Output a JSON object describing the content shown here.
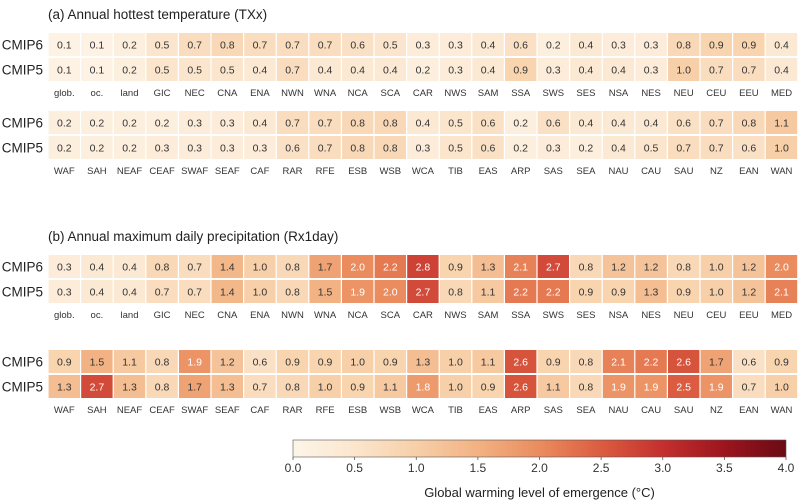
{
  "chart_data": [
    {
      "type": "heatmap",
      "title": "(a) Annual hottest temperature (TXx)",
      "blocks": [
        {
          "regions": [
            "glob.",
            "oc.",
            "land",
            "GIC",
            "NEC",
            "CNA",
            "ENA",
            "NWN",
            "WNA",
            "NCA",
            "SCA",
            "CAR",
            "NWS",
            "SAM",
            "SSA",
            "SWS",
            "SES",
            "NSA",
            "NES",
            "NEU",
            "CEU",
            "EEU",
            "MED"
          ],
          "series": [
            {
              "name": "CMIP6",
              "values": [
                0.1,
                0.1,
                0.2,
                0.5,
                0.7,
                0.8,
                0.7,
                0.7,
                0.7,
                0.6,
                0.5,
                0.3,
                0.3,
                0.4,
                0.6,
                0.2,
                0.4,
                0.3,
                0.3,
                0.8,
                0.9,
                0.9,
                0.4
              ]
            },
            {
              "name": "CMIP5",
              "values": [
                0.1,
                0.1,
                0.2,
                0.5,
                0.5,
                0.5,
                0.4,
                0.7,
                0.4,
                0.4,
                0.4,
                0.2,
                0.3,
                0.4,
                0.9,
                0.3,
                0.4,
                0.4,
                0.3,
                1.0,
                0.7,
                0.7,
                0.4
              ]
            }
          ]
        },
        {
          "regions": [
            "WAF",
            "SAH",
            "NEAF",
            "CEAF",
            "SWAF",
            "SEAF",
            "CAF",
            "RAR",
            "RFE",
            "ESB",
            "WSB",
            "WCA",
            "TIB",
            "EAS",
            "ARP",
            "SAS",
            "SEA",
            "NAU",
            "CAU",
            "SAU",
            "NZ",
            "EAN",
            "WAN"
          ],
          "series": [
            {
              "name": "CMIP6",
              "values": [
                0.2,
                0.2,
                0.2,
                0.2,
                0.3,
                0.3,
                0.4,
                0.7,
                0.7,
                0.8,
                0.8,
                0.4,
                0.5,
                0.6,
                0.2,
                0.6,
                0.4,
                0.4,
                0.4,
                0.6,
                0.7,
                0.8,
                1.1
              ]
            },
            {
              "name": "CMIP5",
              "values": [
                0.2,
                0.2,
                0.2,
                0.3,
                0.3,
                0.3,
                0.3,
                0.6,
                0.7,
                0.8,
                0.8,
                0.3,
                0.5,
                0.6,
                0.2,
                0.3,
                0.2,
                0.4,
                0.5,
                0.7,
                0.7,
                0.6,
                1.0
              ]
            }
          ]
        }
      ]
    },
    {
      "type": "heatmap",
      "title": "(b) Annual maximum daily precipitation (Rx1day)",
      "blocks": [
        {
          "regions": [
            "glob.",
            "oc.",
            "land",
            "GIC",
            "NEC",
            "CNA",
            "ENA",
            "NWN",
            "WNA",
            "NCA",
            "SCA",
            "CAR",
            "NWS",
            "SAM",
            "SSA",
            "SWS",
            "SES",
            "NSA",
            "NES",
            "NEU",
            "CEU",
            "EEU",
            "MED"
          ],
          "series": [
            {
              "name": "CMIP6",
              "values": [
                0.3,
                0.4,
                0.4,
                0.8,
                0.7,
                1.4,
                1.0,
                0.8,
                1.7,
                2.0,
                2.2,
                2.8,
                0.9,
                1.3,
                2.1,
                2.7,
                0.8,
                1.2,
                1.2,
                0.8,
                1.0,
                1.2,
                2.0
              ]
            },
            {
              "name": "CMIP5",
              "values": [
                0.3,
                0.4,
                0.4,
                0.7,
                0.7,
                1.4,
                1.0,
                0.8,
                1.5,
                1.9,
                2.0,
                2.7,
                0.8,
                1.1,
                2.2,
                2.2,
                0.9,
                0.9,
                1.3,
                0.9,
                1.0,
                1.2,
                2.1
              ]
            }
          ]
        },
        {
          "regions": [
            "WAF",
            "SAH",
            "NEAF",
            "CEAF",
            "SWAF",
            "SEAF",
            "CAF",
            "RAR",
            "RFE",
            "ESB",
            "WSB",
            "WCA",
            "TIB",
            "EAS",
            "ARP",
            "SAS",
            "SEA",
            "NAU",
            "CAU",
            "SAU",
            "NZ",
            "EAN",
            "WAN"
          ],
          "series": [
            {
              "name": "CMIP6",
              "values": [
                0.9,
                1.5,
                1.1,
                0.8,
                1.9,
                1.2,
                0.6,
                0.9,
                0.9,
                1.0,
                0.9,
                1.3,
                1.0,
                1.1,
                2.6,
                0.9,
                0.8,
                2.1,
                2.2,
                2.6,
                1.7,
                0.6,
                0.9
              ]
            },
            {
              "name": "CMIP5",
              "values": [
                1.3,
                2.7,
                1.3,
                0.8,
                1.7,
                1.3,
                0.7,
                0.8,
                1.0,
                0.9,
                1.1,
                1.8,
                1.0,
                0.9,
                2.6,
                1.1,
                0.8,
                1.9,
                1.9,
                2.5,
                1.9,
                0.7,
                1.0
              ]
            }
          ]
        }
      ]
    }
  ],
  "colorbar": {
    "label": "Global warming level of emergence (°C)",
    "range": [
      0.0,
      4.0
    ],
    "ticks": [
      "0.0",
      "0.5",
      "1.0",
      "1.5",
      "2.0",
      "2.5",
      "3.0",
      "3.5",
      "4.0"
    ],
    "stops": [
      "#fdf5ea",
      "#fbe6cd",
      "#f7cfa8",
      "#f2b283",
      "#ea8c5e",
      "#db5c40",
      "#c4302e",
      "#9c151e",
      "#6b0a14"
    ]
  }
}
